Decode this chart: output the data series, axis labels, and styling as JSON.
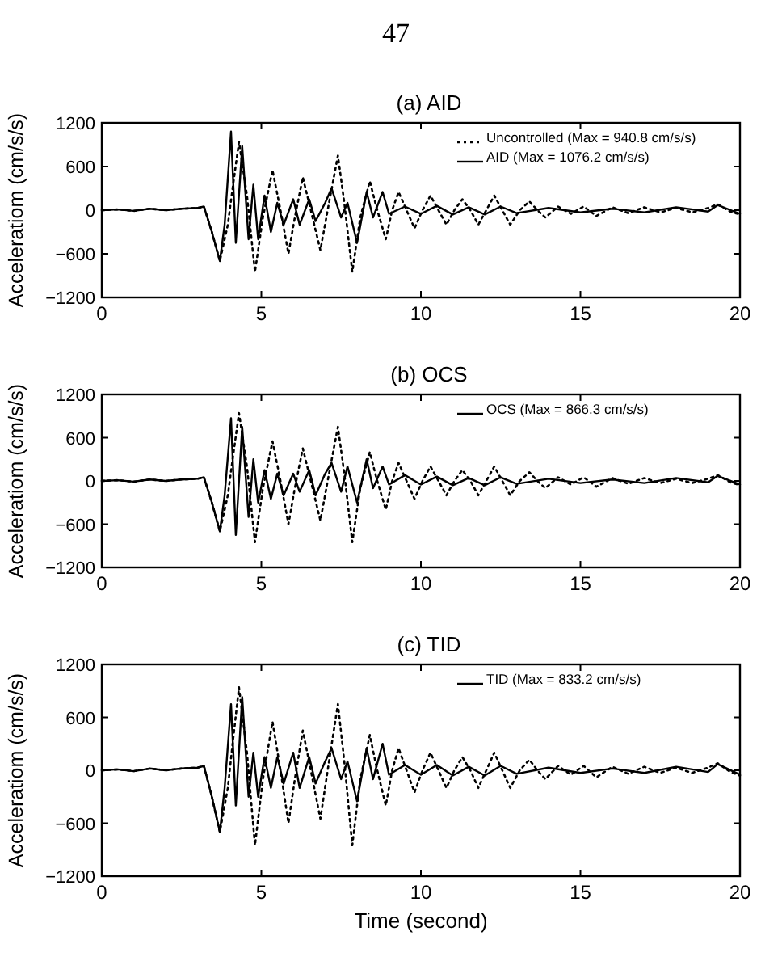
{
  "chart_data": [
    {
      "type": "line",
      "title": "(a) AID",
      "ylabel": "Acceleratiom (cm/s/s)",
      "annotations": [
        "47"
      ],
      "xlim": [
        0,
        20
      ],
      "xticks": [
        0,
        5,
        10,
        15,
        20
      ],
      "ylim": [
        -1200,
        1200
      ],
      "yticks": [
        -1200,
        -600,
        0,
        600,
        1200
      ],
      "grid": false,
      "legend": "top right",
      "series": [
        {
          "name": "Uncontrolled (Max = 940.8 cm/s/s)",
          "color": "#000000",
          "line_style": "dotted",
          "x": [
            0,
            0.5,
            1,
            1.5,
            2,
            2.5,
            3,
            3.2,
            3.45,
            3.7,
            3.95,
            4.1,
            4.3,
            4.55,
            4.8,
            5.05,
            5.35,
            5.6,
            5.85,
            6.05,
            6.3,
            6.55,
            6.85,
            7.1,
            7.4,
            7.6,
            7.85,
            8.1,
            8.4,
            8.6,
            8.9,
            9.1,
            9.3,
            9.55,
            9.8,
            10.05,
            10.3,
            10.55,
            10.8,
            11.05,
            11.3,
            11.55,
            11.8,
            12.05,
            12.3,
            12.55,
            12.8,
            13.1,
            13.4,
            13.65,
            13.9,
            14.3,
            14.7,
            15.1,
            15.5,
            16,
            16.5,
            17,
            17.5,
            18,
            18.5,
            19,
            19.3,
            19.7,
            20
          ],
          "values": [
            0,
            10,
            -10,
            20,
            0,
            20,
            30,
            50,
            -300,
            -700,
            -200,
            300,
            940,
            200,
            -850,
            -100,
            550,
            0,
            -600,
            -100,
            450,
            0,
            -550,
            50,
            750,
            100,
            -850,
            -100,
            400,
            50,
            -400,
            0,
            250,
            0,
            -250,
            0,
            200,
            0,
            -200,
            0,
            150,
            0,
            -200,
            0,
            200,
            0,
            -200,
            0,
            120,
            0,
            -100,
            50,
            -50,
            50,
            -80,
            40,
            -40,
            40,
            -30,
            30,
            -30,
            30,
            80,
            -20,
            -60
          ]
        },
        {
          "name": "AID (Max = 1076.2 cm/s/s)",
          "color": "#000000",
          "line_style": "solid",
          "x": [
            0,
            0.5,
            1,
            1.5,
            2,
            2.5,
            3,
            3.2,
            3.45,
            3.7,
            3.85,
            4.05,
            4.2,
            4.4,
            4.6,
            4.75,
            4.9,
            5.1,
            5.3,
            5.5,
            5.7,
            6.0,
            6.2,
            6.5,
            6.7,
            7.0,
            7.2,
            7.5,
            7.7,
            8.0,
            8.3,
            8.5,
            8.8,
            9.0,
            9.5,
            10,
            10.5,
            11,
            11.5,
            12,
            12.5,
            13,
            14,
            15,
            16,
            17,
            18,
            19,
            19.3,
            20
          ],
          "values": [
            0,
            10,
            -10,
            20,
            0,
            20,
            30,
            50,
            -300,
            -700,
            -200,
            1080,
            -450,
            880,
            -400,
            350,
            -400,
            200,
            -300,
            100,
            -200,
            150,
            -200,
            150,
            -150,
            100,
            300,
            -100,
            100,
            -450,
            250,
            -100,
            250,
            -50,
            50,
            -50,
            60,
            -60,
            40,
            -60,
            50,
            -40,
            30,
            -30,
            20,
            -30,
            40,
            -20,
            70,
            -50
          ]
        }
      ]
    },
    {
      "type": "line",
      "title": "(b) OCS",
      "ylabel": "Acceleratiom (cm/s/s)",
      "xlim": [
        0,
        20
      ],
      "xticks": [
        0,
        5,
        10,
        15,
        20
      ],
      "ylim": [
        -1200,
        1200
      ],
      "yticks": [
        -1200,
        -600,
        0,
        600,
        1200
      ],
      "grid": false,
      "legend": "top right",
      "series": [
        {
          "color": "#000000",
          "line_style": "dotted",
          "x": [
            0,
            0.5,
            1,
            1.5,
            2,
            2.5,
            3,
            3.2,
            3.45,
            3.7,
            3.95,
            4.1,
            4.3,
            4.55,
            4.8,
            5.05,
            5.35,
            5.6,
            5.85,
            6.05,
            6.3,
            6.55,
            6.85,
            7.1,
            7.4,
            7.6,
            7.85,
            8.1,
            8.4,
            8.6,
            8.9,
            9.1,
            9.3,
            9.55,
            9.8,
            10.05,
            10.3,
            10.55,
            10.8,
            11.05,
            11.3,
            11.55,
            11.8,
            12.05,
            12.3,
            12.55,
            12.8,
            13.1,
            13.4,
            13.65,
            13.9,
            14.3,
            14.7,
            15.1,
            15.5,
            16,
            16.5,
            17,
            17.5,
            18,
            18.5,
            19,
            19.3,
            19.7,
            20
          ],
          "values": [
            0,
            10,
            -10,
            20,
            0,
            20,
            30,
            50,
            -300,
            -700,
            -200,
            300,
            940,
            200,
            -850,
            -100,
            550,
            0,
            -600,
            -100,
            450,
            0,
            -550,
            50,
            750,
            100,
            -850,
            -100,
            400,
            50,
            -400,
            0,
            250,
            0,
            -250,
            0,
            200,
            0,
            -200,
            0,
            150,
            0,
            -200,
            0,
            200,
            0,
            -200,
            0,
            120,
            0,
            -100,
            50,
            -50,
            50,
            -80,
            40,
            -40,
            40,
            -30,
            30,
            -30,
            30,
            80,
            -20,
            -60
          ]
        },
        {
          "name": "OCS (Max = 866.3 cm/s/s)",
          "color": "#000000",
          "line_style": "solid",
          "x": [
            0,
            0.5,
            1,
            1.5,
            2,
            2.5,
            3,
            3.2,
            3.45,
            3.7,
            3.85,
            4.05,
            4.2,
            4.4,
            4.6,
            4.75,
            4.9,
            5.1,
            5.3,
            5.5,
            5.7,
            6.0,
            6.2,
            6.5,
            6.7,
            7.0,
            7.2,
            7.5,
            7.7,
            8.0,
            8.3,
            8.5,
            8.8,
            9.0,
            9.5,
            10,
            10.5,
            11,
            11.5,
            12,
            12.5,
            13,
            14,
            15,
            16,
            17,
            18,
            19,
            19.3,
            20
          ],
          "values": [
            0,
            10,
            -10,
            20,
            0,
            20,
            30,
            50,
            -300,
            -700,
            -200,
            870,
            -750,
            750,
            -500,
            300,
            -300,
            150,
            -250,
            100,
            -200,
            100,
            -150,
            150,
            -200,
            100,
            250,
            -150,
            200,
            -300,
            300,
            -100,
            200,
            -50,
            80,
            -50,
            60,
            -60,
            40,
            -60,
            50,
            -40,
            30,
            -30,
            20,
            -30,
            40,
            -20,
            70,
            -50
          ]
        }
      ]
    },
    {
      "type": "line",
      "title": "(c) TID",
      "xlabel": "Time (second)",
      "ylabel": "Acceleratiom (cm/s/s)",
      "xlim": [
        0,
        20
      ],
      "xticks": [
        0,
        5,
        10,
        15,
        20
      ],
      "ylim": [
        -1200,
        1200
      ],
      "yticks": [
        -1200,
        -600,
        0,
        600,
        1200
      ],
      "grid": false,
      "legend": "top right",
      "series": [
        {
          "color": "#000000",
          "line_style": "dotted",
          "x": [
            0,
            0.5,
            1,
            1.5,
            2,
            2.5,
            3,
            3.2,
            3.45,
            3.7,
            3.95,
            4.1,
            4.3,
            4.55,
            4.8,
            5.05,
            5.35,
            5.6,
            5.85,
            6.05,
            6.3,
            6.55,
            6.85,
            7.1,
            7.4,
            7.6,
            7.85,
            8.1,
            8.4,
            8.6,
            8.9,
            9.1,
            9.3,
            9.55,
            9.8,
            10.05,
            10.3,
            10.55,
            10.8,
            11.05,
            11.3,
            11.55,
            11.8,
            12.05,
            12.3,
            12.55,
            12.8,
            13.1,
            13.4,
            13.65,
            13.9,
            14.3,
            14.7,
            15.1,
            15.5,
            16,
            16.5,
            17,
            17.5,
            18,
            18.5,
            19,
            19.3,
            19.7,
            20
          ],
          "values": [
            0,
            10,
            -10,
            20,
            0,
            20,
            30,
            50,
            -300,
            -700,
            -200,
            300,
            940,
            200,
            -850,
            -100,
            550,
            0,
            -600,
            -100,
            450,
            0,
            -550,
            50,
            750,
            100,
            -850,
            -100,
            400,
            50,
            -400,
            0,
            250,
            0,
            -250,
            0,
            200,
            0,
            -200,
            0,
            150,
            0,
            -200,
            0,
            200,
            0,
            -200,
            0,
            120,
            0,
            -100,
            50,
            -50,
            50,
            -80,
            40,
            -40,
            40,
            -30,
            30,
            -30,
            30,
            80,
            -20,
            -60
          ]
        },
        {
          "name": "TID (Max = 833.2 cm/s/s)",
          "color": "#000000",
          "line_style": "solid",
          "x": [
            0,
            0.5,
            1,
            1.5,
            2,
            2.5,
            3,
            3.2,
            3.45,
            3.7,
            3.85,
            4.05,
            4.2,
            4.4,
            4.6,
            4.75,
            4.9,
            5.1,
            5.3,
            5.5,
            5.7,
            6.0,
            6.2,
            6.5,
            6.7,
            7.0,
            7.2,
            7.5,
            7.7,
            8.0,
            8.3,
            8.5,
            8.8,
            9.0,
            9.5,
            10,
            10.5,
            11,
            11.5,
            12,
            12.5,
            13,
            14,
            15,
            16,
            17,
            18,
            19,
            19.3,
            20
          ],
          "values": [
            0,
            10,
            -10,
            20,
            0,
            20,
            30,
            50,
            -300,
            -700,
            -200,
            750,
            -400,
            830,
            -300,
            200,
            -300,
            150,
            -200,
            150,
            -150,
            200,
            -200,
            150,
            -150,
            100,
            250,
            -100,
            100,
            -350,
            250,
            -100,
            300,
            -50,
            60,
            -50,
            60,
            -60,
            40,
            -60,
            50,
            -40,
            30,
            -30,
            20,
            -30,
            40,
            -20,
            70,
            -50
          ]
        }
      ]
    }
  ]
}
